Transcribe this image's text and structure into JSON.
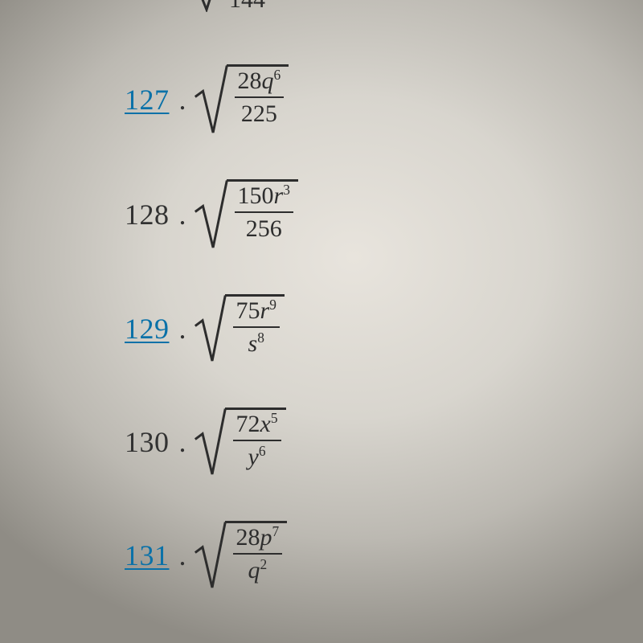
{
  "colors": {
    "text": "#2d2d2d",
    "link": "#0a71a8",
    "bg_center": "#e8e4dd",
    "bg_edge": "#8f8c85"
  },
  "font": "Georgia, Times New Roman, serif",
  "partial": {
    "denominator": "144"
  },
  "problems": [
    {
      "id": "p127",
      "number": "127",
      "is_link": true,
      "numerator_coeff": "28",
      "numerator_var": "q",
      "numerator_exp": "6",
      "denominator_coeff": "225",
      "denominator_var": "",
      "denominator_exp": "",
      "radical_height": 88,
      "radical_width": 42
    },
    {
      "id": "p128",
      "number": "128",
      "is_link": false,
      "numerator_coeff": "150",
      "numerator_var": "r",
      "numerator_exp": "3",
      "denominator_coeff": "256",
      "denominator_var": "",
      "denominator_exp": "",
      "radical_height": 88,
      "radical_width": 42
    },
    {
      "id": "p129",
      "number": "129",
      "is_link": true,
      "numerator_coeff": "75",
      "numerator_var": "r",
      "numerator_exp": "9",
      "denominator_coeff": "",
      "denominator_var": "s",
      "denominator_exp": "8",
      "radical_height": 86,
      "radical_width": 40
    },
    {
      "id": "p130",
      "number": "130",
      "is_link": false,
      "numerator_coeff": "72",
      "numerator_var": "x",
      "numerator_exp": "5",
      "denominator_coeff": "",
      "denominator_var": "y",
      "denominator_exp": "6",
      "radical_height": 86,
      "radical_width": 40
    },
    {
      "id": "p131",
      "number": "131",
      "is_link": true,
      "numerator_coeff": "28",
      "numerator_var": "p",
      "numerator_exp": "7",
      "denominator_coeff": "",
      "denominator_var": "q",
      "denominator_exp": "2",
      "radical_height": 86,
      "radical_width": 40
    }
  ]
}
